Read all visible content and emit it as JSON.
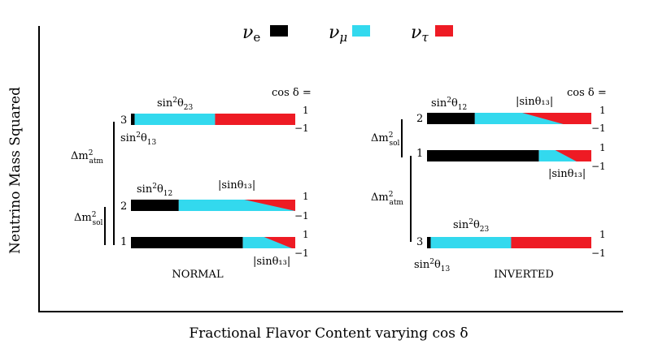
{
  "colors": {
    "nu_e": "#000000",
    "nu_mu": "#33d9ee",
    "nu_tau": "#ee1b24"
  },
  "legend": [
    {
      "base": "ν",
      "sub": "e",
      "color_key": "nu_e"
    },
    {
      "base": "ν",
      "sub": "μ",
      "color_key": "nu_mu"
    },
    {
      "base": "ν",
      "sub": "τ",
      "color_key": "nu_tau"
    }
  ],
  "axes": {
    "y_title": "Neutrino Mass Squared",
    "x_title": "Fractional Flavor Content varying cos δ"
  },
  "cos_delta_label": "cos δ =",
  "cos_values": {
    "top": "1",
    "bottom": "−1"
  },
  "labels": {
    "sin_theta23": "sin²θ₂₃",
    "sin_theta12": "sin²θ₁₂",
    "sin_theta13": "sin²θ₁₃",
    "abs_sin_theta13": "|sinθ₁₃|",
    "dm_atm": "Δm²atm",
    "dm_sol": "Δm²sol"
  },
  "hierarchies": [
    {
      "name": "NORMAL",
      "states": [
        {
          "number": "3",
          "fractions": {
            "nu_e": 0.022,
            "nu_mu_top": 0.49,
            "nu_mu_bottom": 0.49
          }
        },
        {
          "number": "2",
          "fractions": {
            "nu_e": 0.29,
            "nu_mu_top": 0.4,
            "nu_mu_bottom": 0.71
          }
        },
        {
          "number": "1",
          "fractions": {
            "nu_e": 0.68,
            "nu_mu_top": 0.13,
            "nu_mu_bottom": 0.3
          }
        }
      ]
    },
    {
      "name": "INVERTED",
      "states": [
        {
          "number": "2",
          "fractions": {
            "nu_e": 0.29,
            "nu_mu_top": 0.29,
            "nu_mu_bottom": 0.54
          }
        },
        {
          "number": "1",
          "fractions": {
            "nu_e": 0.68,
            "nu_mu_top": 0.1,
            "nu_mu_bottom": 0.23
          }
        },
        {
          "number": "3",
          "fractions": {
            "nu_e": 0.022,
            "nu_mu_top": 0.49,
            "nu_mu_bottom": 0.49
          }
        }
      ]
    }
  ]
}
